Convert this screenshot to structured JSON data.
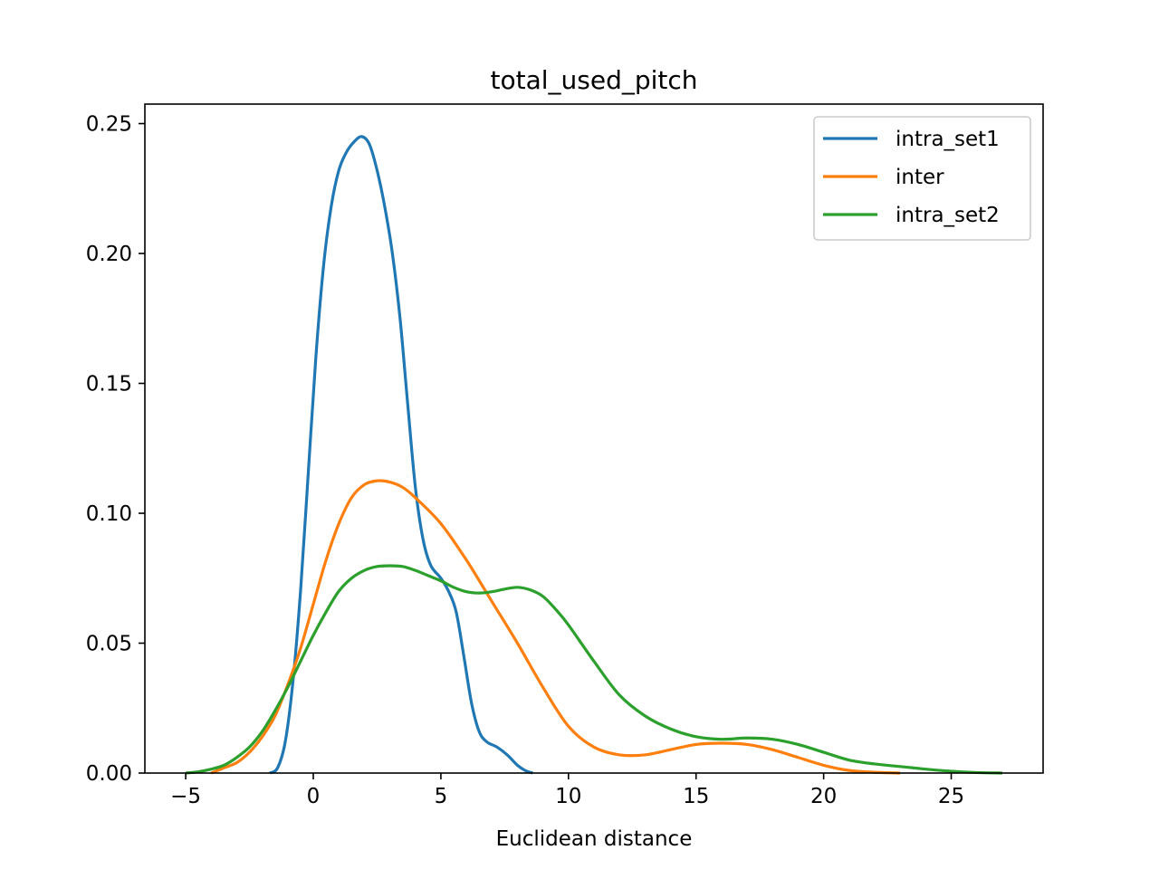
{
  "chart_data": {
    "type": "line",
    "title": "total_used_pitch",
    "xlabel": "Euclidean distance",
    "ylabel": "",
    "xlim": [
      -6.6,
      28.6
    ],
    "ylim": [
      0,
      0.2575
    ],
    "xticks": [
      -5,
      0,
      5,
      10,
      15,
      20,
      25
    ],
    "xtick_labels": [
      "−5",
      "0",
      "5",
      "10",
      "15",
      "20",
      "25"
    ],
    "yticks": [
      0,
      0.05,
      0.1,
      0.15,
      0.2,
      0.25
    ],
    "ytick_labels": [
      "0.00",
      "0.05",
      "0.10",
      "0.15",
      "0.20",
      "0.25"
    ],
    "grid": false,
    "legend_position": "top-right",
    "series": [
      {
        "name": "intra_set1",
        "color": "#1f77b4",
        "points": [
          [
            -1.7,
            0.0
          ],
          [
            -1.4,
            0.002
          ],
          [
            -1.1,
            0.012
          ],
          [
            -0.8,
            0.035
          ],
          [
            -0.5,
            0.07
          ],
          [
            -0.2,
            0.115
          ],
          [
            0.1,
            0.16
          ],
          [
            0.4,
            0.195
          ],
          [
            0.7,
            0.218
          ],
          [
            1.0,
            0.232
          ],
          [
            1.3,
            0.239
          ],
          [
            1.6,
            0.243
          ],
          [
            1.9,
            0.245
          ],
          [
            2.2,
            0.242
          ],
          [
            2.5,
            0.232
          ],
          [
            2.8,
            0.218
          ],
          [
            3.1,
            0.2
          ],
          [
            3.4,
            0.175
          ],
          [
            3.7,
            0.142
          ],
          [
            4.0,
            0.11
          ],
          [
            4.3,
            0.09
          ],
          [
            4.6,
            0.08
          ],
          [
            5.0,
            0.075
          ],
          [
            5.3,
            0.07
          ],
          [
            5.6,
            0.062
          ],
          [
            5.9,
            0.045
          ],
          [
            6.2,
            0.027
          ],
          [
            6.5,
            0.016
          ],
          [
            6.8,
            0.012
          ],
          [
            7.2,
            0.01
          ],
          [
            7.6,
            0.007
          ],
          [
            8.0,
            0.003
          ],
          [
            8.3,
            0.001
          ],
          [
            8.6,
            0.0
          ]
        ]
      },
      {
        "name": "inter",
        "color": "#ff7f0e",
        "points": [
          [
            -4.0,
            0.0
          ],
          [
            -3.5,
            0.002
          ],
          [
            -3.0,
            0.004
          ],
          [
            -2.5,
            0.008
          ],
          [
            -2.0,
            0.014
          ],
          [
            -1.5,
            0.022
          ],
          [
            -1.0,
            0.034
          ],
          [
            -0.5,
            0.048
          ],
          [
            0.0,
            0.065
          ],
          [
            0.5,
            0.082
          ],
          [
            1.0,
            0.096
          ],
          [
            1.5,
            0.106
          ],
          [
            2.0,
            0.111
          ],
          [
            2.5,
            0.1125
          ],
          [
            3.0,
            0.112
          ],
          [
            3.5,
            0.11
          ],
          [
            4.0,
            0.106
          ],
          [
            5.0,
            0.096
          ],
          [
            6.0,
            0.082
          ],
          [
            7.0,
            0.066
          ],
          [
            8.0,
            0.05
          ],
          [
            9.0,
            0.033
          ],
          [
            10.0,
            0.018
          ],
          [
            11.0,
            0.01
          ],
          [
            12.0,
            0.007
          ],
          [
            13.0,
            0.007
          ],
          [
            14.0,
            0.009
          ],
          [
            15.0,
            0.011
          ],
          [
            16.0,
            0.0115
          ],
          [
            17.0,
            0.011
          ],
          [
            18.0,
            0.009
          ],
          [
            19.0,
            0.006
          ],
          [
            20.0,
            0.003
          ],
          [
            21.0,
            0.001
          ],
          [
            22.0,
            0.0003
          ],
          [
            23.0,
            0.0
          ]
        ]
      },
      {
        "name": "intra_set2",
        "color": "#2ca02c",
        "points": [
          [
            -5.0,
            0.0
          ],
          [
            -4.5,
            0.0005
          ],
          [
            -4.0,
            0.0015
          ],
          [
            -3.5,
            0.003
          ],
          [
            -3.0,
            0.006
          ],
          [
            -2.5,
            0.01
          ],
          [
            -2.0,
            0.016
          ],
          [
            -1.5,
            0.024
          ],
          [
            -1.0,
            0.033
          ],
          [
            -0.5,
            0.043
          ],
          [
            0.0,
            0.053
          ],
          [
            0.5,
            0.062
          ],
          [
            1.0,
            0.07
          ],
          [
            1.5,
            0.075
          ],
          [
            2.0,
            0.078
          ],
          [
            2.5,
            0.0795
          ],
          [
            3.0,
            0.0798
          ],
          [
            3.5,
            0.0795
          ],
          [
            4.0,
            0.078
          ],
          [
            4.5,
            0.076
          ],
          [
            5.0,
            0.074
          ],
          [
            5.5,
            0.0715
          ],
          [
            6.0,
            0.0698
          ],
          [
            6.5,
            0.0693
          ],
          [
            7.0,
            0.0698
          ],
          [
            7.5,
            0.0708
          ],
          [
            8.0,
            0.0715
          ],
          [
            8.5,
            0.0705
          ],
          [
            9.0,
            0.068
          ],
          [
            9.5,
            0.063
          ],
          [
            10.0,
            0.057
          ],
          [
            11.0,
            0.043
          ],
          [
            12.0,
            0.03
          ],
          [
            13.0,
            0.022
          ],
          [
            14.0,
            0.017
          ],
          [
            15.0,
            0.014
          ],
          [
            16.0,
            0.013
          ],
          [
            17.0,
            0.0135
          ],
          [
            18.0,
            0.013
          ],
          [
            19.0,
            0.011
          ],
          [
            20.0,
            0.008
          ],
          [
            21.0,
            0.005
          ],
          [
            22.0,
            0.0035
          ],
          [
            23.0,
            0.0025
          ],
          [
            24.0,
            0.0015
          ],
          [
            25.0,
            0.0007
          ],
          [
            26.0,
            0.0002
          ],
          [
            27.0,
            0.0
          ]
        ]
      }
    ]
  }
}
